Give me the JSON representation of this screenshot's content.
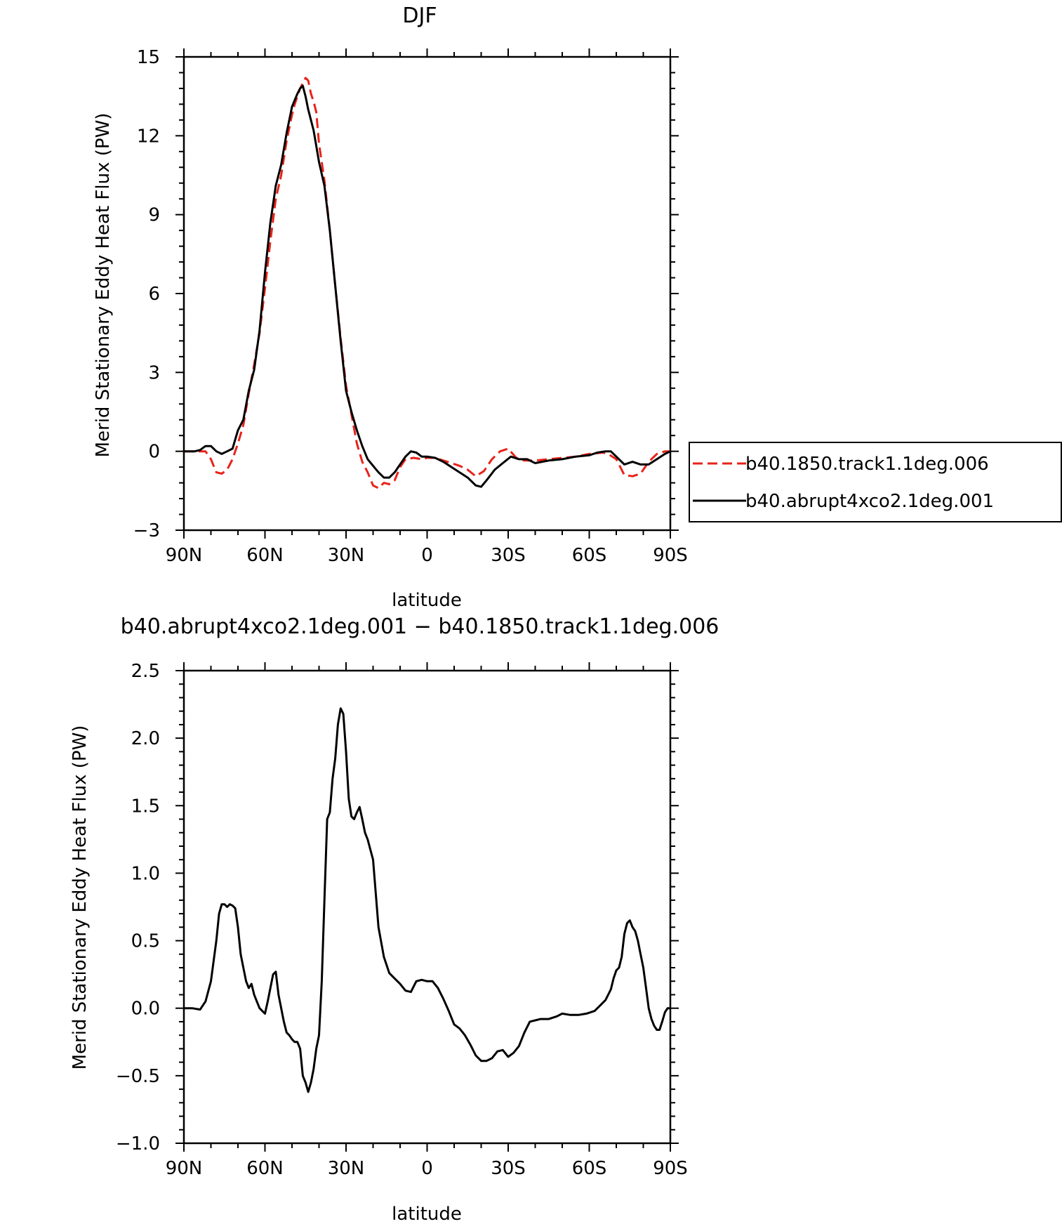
{
  "chart_data": [
    {
      "type": "line",
      "title": "DJF",
      "xlabel": "latitude",
      "ylabel": "Merid Stationary Eddy Heat Flux (PW)",
      "xlim": [
        90,
        -90
      ],
      "ylim": [
        -3,
        15
      ],
      "x_ticks": [
        90,
        60,
        30,
        0,
        -30,
        -60,
        -90
      ],
      "x_tick_labels": [
        "90N",
        "60N",
        "30N",
        "0",
        "30S",
        "60S",
        "90S"
      ],
      "y_ticks": [
        -3,
        0,
        3,
        6,
        9,
        12,
        15
      ],
      "y_tick_labels": [
        "−3",
        "0",
        "3",
        "6",
        "9",
        "12",
        "15"
      ],
      "grid": false,
      "legend": "right",
      "series": [
        {
          "name": "b40.1850.track1.1deg.006",
          "color": "#e8231a",
          "dash": "dashed",
          "x": [
            90,
            85,
            82,
            80,
            78,
            76,
            74,
            72,
            70,
            68,
            66,
            64,
            62,
            60,
            58,
            56,
            54,
            52,
            50,
            49,
            48,
            47,
            46,
            45,
            44,
            43,
            42,
            41,
            40,
            38,
            36,
            34,
            32,
            30,
            28,
            26,
            24,
            22,
            20,
            18,
            16,
            14,
            12,
            10,
            8,
            5,
            2,
            0,
            -3,
            -6,
            -9,
            -12,
            -15,
            -18,
            -21,
            -24,
            -27,
            -30,
            -33,
            -36,
            -40,
            -45,
            -50,
            -55,
            -60,
            -65,
            -67,
            -70,
            -73,
            -76,
            -79,
            -82,
            -85,
            -88,
            -90
          ],
          "y": [
            0,
            0,
            0,
            -0.3,
            -0.8,
            -0.85,
            -0.7,
            -0.3,
            0.3,
            1.0,
            2.2,
            3.3,
            4.5,
            6.2,
            8.0,
            9.6,
            10.5,
            11.8,
            12.8,
            13.2,
            13.5,
            13.8,
            14.0,
            14.2,
            14.1,
            13.6,
            13.3,
            12.9,
            11.7,
            10.3,
            8.4,
            6.3,
            4.3,
            2.5,
            1.4,
            0.3,
            -0.4,
            -0.8,
            -1.3,
            -1.4,
            -1.2,
            -1.25,
            -1.1,
            -0.6,
            -0.3,
            -0.25,
            -0.3,
            -0.25,
            -0.25,
            -0.35,
            -0.45,
            -0.55,
            -0.7,
            -0.95,
            -0.75,
            -0.3,
            0.0,
            0.1,
            -0.25,
            -0.35,
            -0.35,
            -0.3,
            -0.25,
            -0.2,
            -0.1,
            -0.05,
            -0.1,
            -0.3,
            -0.9,
            -0.95,
            -0.85,
            -0.4,
            -0.1,
            0.0,
            0.0
          ]
        },
        {
          "name": "b40.abrupt4xco2.1deg.001",
          "color": "#000000",
          "dash": "solid",
          "x": [
            90,
            86,
            84,
            82,
            80,
            78,
            76,
            74,
            72,
            70,
            68,
            66,
            64,
            62,
            60,
            58,
            56,
            54,
            52,
            50,
            48,
            47,
            46,
            45,
            44,
            42,
            40,
            38,
            36,
            34,
            32,
            30,
            28,
            26,
            24,
            22,
            20,
            18,
            16,
            14,
            12,
            10,
            8,
            6,
            4,
            2,
            0,
            -3,
            -6,
            -9,
            -12,
            -15,
            -18,
            -20,
            -22,
            -25,
            -28,
            -31,
            -34,
            -37,
            -40,
            -45,
            -50,
            -55,
            -60,
            -63,
            -66,
            -68,
            -70,
            -73,
            -76,
            -79,
            -82,
            -85,
            -88,
            -90
          ],
          "y": [
            0,
            0,
            0.05,
            0.2,
            0.2,
            0.0,
            -0.1,
            0.0,
            0.1,
            0.8,
            1.2,
            2.3,
            3.1,
            4.6,
            6.8,
            8.7,
            10.1,
            10.9,
            12.1,
            13.1,
            13.6,
            13.8,
            13.9,
            13.5,
            13.0,
            12.2,
            11.0,
            10.1,
            8.4,
            6.3,
            4.2,
            2.3,
            1.5,
            0.8,
            0.2,
            -0.3,
            -0.55,
            -0.8,
            -1.0,
            -1.0,
            -0.8,
            -0.5,
            -0.2,
            0.0,
            -0.05,
            -0.2,
            -0.2,
            -0.25,
            -0.4,
            -0.6,
            -0.8,
            -1.0,
            -1.3,
            -1.35,
            -1.1,
            -0.7,
            -0.45,
            -0.2,
            -0.3,
            -0.3,
            -0.45,
            -0.35,
            -0.3,
            -0.2,
            -0.15,
            -0.05,
            0.0,
            0.0,
            -0.2,
            -0.5,
            -0.4,
            -0.5,
            -0.5,
            -0.3,
            -0.1,
            0.0
          ]
        }
      ]
    },
    {
      "type": "line",
      "title": "b40.abrupt4xco2.1deg.001 − b40.1850.track1.1deg.006",
      "xlabel": "latitude",
      "ylabel": "Merid Stationary Eddy Heat Flux (PW)",
      "xlim": [
        90,
        -90
      ],
      "ylim": [
        -1.0,
        2.5
      ],
      "x_ticks": [
        90,
        60,
        30,
        0,
        -30,
        -60,
        -90
      ],
      "x_tick_labels": [
        "90N",
        "60N",
        "30N",
        "0",
        "30S",
        "60S",
        "90S"
      ],
      "y_ticks": [
        -1.0,
        -0.5,
        0.0,
        0.5,
        1.0,
        1.5,
        2.0,
        2.5
      ],
      "y_tick_labels": [
        "−1.0",
        "−0.5",
        "0.0",
        "0.5",
        "1.0",
        "1.5",
        "2.0",
        "2.5"
      ],
      "grid": false,
      "series": [
        {
          "color": "#000000",
          "dash": "solid",
          "x": [
            90,
            87,
            84,
            82,
            80,
            78,
            77,
            76,
            75,
            74,
            73,
            72,
            71,
            70,
            69,
            68,
            67,
            66,
            65,
            64,
            63,
            62,
            61,
            60,
            59,
            58,
            57,
            56,
            55,
            54,
            53,
            52,
            51,
            50,
            49,
            48,
            47,
            46,
            45,
            44,
            43,
            42,
            41,
            40,
            39,
            38,
            37,
            36,
            35,
            34,
            33,
            32,
            31,
            30,
            29,
            28,
            27,
            26,
            25,
            24,
            23,
            22,
            20,
            18,
            16,
            14,
            12,
            10,
            8,
            6,
            4,
            2,
            0,
            -2,
            -4,
            -6,
            -8,
            -10,
            -12,
            -14,
            -16,
            -18,
            -20,
            -22,
            -24,
            -26,
            -28,
            -30,
            -32,
            -34,
            -36,
            -38,
            -40,
            -42,
            -45,
            -48,
            -50,
            -53,
            -56,
            -59,
            -62,
            -64,
            -66,
            -67,
            -68,
            -69,
            -70,
            -71,
            -72,
            -73,
            -74,
            -75,
            -76,
            -77,
            -78,
            -79,
            -80,
            -81,
            -82,
            -83,
            -84,
            -85,
            -86,
            -87,
            -88,
            -89,
            -90
          ],
          "y": [
            0.0,
            0.0,
            -0.01,
            0.05,
            0.2,
            0.5,
            0.7,
            0.77,
            0.77,
            0.75,
            0.77,
            0.76,
            0.74,
            0.6,
            0.4,
            0.3,
            0.2,
            0.15,
            0.18,
            0.1,
            0.05,
            0.0,
            -0.02,
            -0.04,
            0.05,
            0.15,
            0.25,
            0.27,
            0.1,
            0.0,
            -0.1,
            -0.18,
            -0.2,
            -0.23,
            -0.25,
            -0.25,
            -0.3,
            -0.5,
            -0.55,
            -0.62,
            -0.55,
            -0.45,
            -0.3,
            -0.2,
            0.2,
            0.8,
            1.4,
            1.45,
            1.7,
            1.85,
            2.1,
            2.22,
            2.18,
            1.9,
            1.55,
            1.42,
            1.4,
            1.45,
            1.49,
            1.4,
            1.3,
            1.25,
            1.1,
            0.6,
            0.38,
            0.26,
            0.22,
            0.18,
            0.13,
            0.12,
            0.2,
            0.21,
            0.2,
            0.2,
            0.15,
            0.07,
            -0.02,
            -0.12,
            -0.15,
            -0.2,
            -0.27,
            -0.35,
            -0.39,
            -0.39,
            -0.37,
            -0.32,
            -0.31,
            -0.36,
            -0.33,
            -0.28,
            -0.18,
            -0.1,
            -0.09,
            -0.08,
            -0.08,
            -0.06,
            -0.04,
            -0.05,
            -0.05,
            -0.04,
            -0.02,
            0.02,
            0.06,
            0.1,
            0.14,
            0.22,
            0.28,
            0.3,
            0.38,
            0.55,
            0.63,
            0.65,
            0.6,
            0.57,
            0.5,
            0.4,
            0.3,
            0.15,
            0.0,
            -0.08,
            -0.13,
            -0.16,
            -0.16,
            -0.1,
            -0.03,
            0.0,
            0.0
          ]
        }
      ]
    }
  ]
}
